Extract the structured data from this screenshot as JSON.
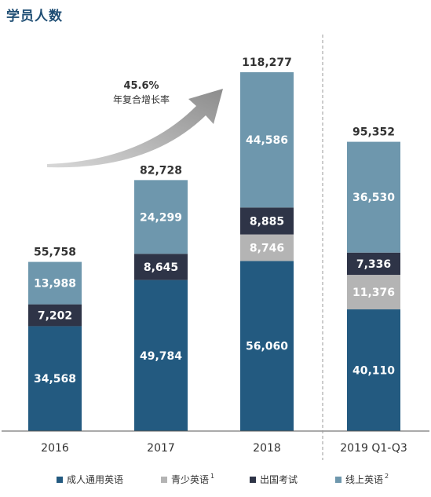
{
  "page_title": "学员人数",
  "chart_data": {
    "type": "bar",
    "stacked": true,
    "categories": [
      "2016",
      "2017",
      "2018",
      "2019 Q1-Q3"
    ],
    "series": [
      {
        "name": "成人通用英语",
        "values": [
          34568,
          49784,
          56060,
          40110
        ],
        "color": "#235a80"
      },
      {
        "name": "青少英语",
        "sup": "1",
        "values": [
          null,
          null,
          8746,
          11376
        ],
        "color": "#b4b4b4"
      },
      {
        "name": "出国考试",
        "values": [
          7202,
          8645,
          8885,
          7336
        ],
        "color": "#2e3447"
      },
      {
        "name": "线上英语",
        "sup": "2",
        "values": [
          13988,
          24299,
          44586,
          36530
        ],
        "color": "#6e97ad"
      }
    ],
    "value_labels": [
      [
        "34,568",
        "49,784",
        "56,060",
        "40,110"
      ],
      [
        "",
        "",
        "8,746",
        "11,376"
      ],
      [
        "7,202",
        "8,645",
        "8,885",
        "7,336"
      ],
      [
        "13,988",
        "24,299",
        "44,586",
        "36,530"
      ]
    ],
    "totals": [
      55758,
      82728,
      118277,
      95352
    ],
    "total_labels": [
      "55,758",
      "82,728",
      "118,277",
      "95,352"
    ],
    "ylim": [
      0,
      125000
    ],
    "annotation": {
      "line1": "45.6%",
      "line2": "年复合增长率"
    },
    "legend_position": "bottom"
  }
}
